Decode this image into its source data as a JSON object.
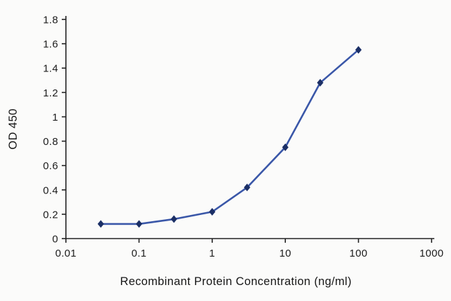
{
  "chart_data": {
    "type": "line",
    "title": "",
    "xlabel": "Recombinant Protein Concentration (ng/ml)",
    "ylabel": "OD 450",
    "x_scale": "log",
    "xlim": [
      0.01,
      1000
    ],
    "ylim": [
      0,
      1.8
    ],
    "x_ticks": [
      "0.01",
      "0.1",
      "1",
      "10",
      "100",
      "1000"
    ],
    "y_ticks": [
      "0",
      "0.2",
      "0.4",
      "0.6",
      "0.8",
      "1",
      "1.2",
      "1.4",
      "1.6",
      "1.8"
    ],
    "grid": false,
    "legend": false,
    "marker": "diamond",
    "colors": {
      "line": "#3a57a8",
      "marker": "#1b2f66",
      "axis": "#222222"
    },
    "series": [
      {
        "name": "OD 450",
        "x": [
          0.03,
          0.1,
          0.3,
          1,
          3,
          10,
          30,
          100
        ],
        "y": [
          0.12,
          0.12,
          0.16,
          0.22,
          0.42,
          0.75,
          1.28,
          1.55
        ]
      }
    ]
  }
}
